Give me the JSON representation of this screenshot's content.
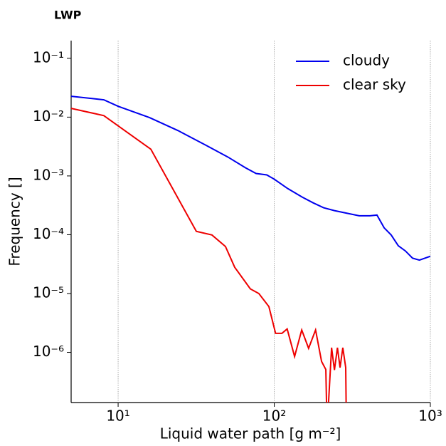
{
  "chart_data": {
    "type": "line",
    "title": "LWP",
    "xlabel": "Liquid water path [g m⁻²]",
    "ylabel": "Frequency []",
    "xscale": "log",
    "yscale": "log",
    "grid": "x",
    "legend": "upper right",
    "xlim": [
      5,
      1000
    ],
    "ylim": [
      1.4e-07,
      0.2
    ],
    "xticks": [
      {
        "value": 10,
        "label": "10¹"
      },
      {
        "value": 100,
        "label": "10²"
      },
      {
        "value": 1000,
        "label": "10³"
      }
    ],
    "yticks": [
      {
        "value": 1e-06,
        "label": "10⁻⁶"
      },
      {
        "value": 1e-05,
        "label": "10⁻⁵"
      },
      {
        "value": 0.0001,
        "label": "10⁻⁴"
      },
      {
        "value": 0.001,
        "label": "10⁻³"
      },
      {
        "value": 0.01,
        "label": "10⁻²"
      },
      {
        "value": 0.1,
        "label": "10⁻¹"
      }
    ],
    "series": [
      {
        "name": "cloudy",
        "color": "#0000ee",
        "x": [
          5,
          8.1,
          10,
          15.9,
          24.2,
          36.7,
          50.4,
          65.3,
          76.5,
          89.6,
          100,
          122,
          151,
          177,
          207,
          243,
          299,
          350,
          410,
          455,
          506,
          561,
          623,
          692,
          769,
          851,
          1000
        ],
        "values": [
          0.0226,
          0.0197,
          0.0153,
          0.0098,
          0.0059,
          0.0033,
          0.0021,
          0.00138,
          0.0011,
          0.00104,
          0.00088,
          0.00061,
          0.000437,
          0.00035,
          0.000288,
          0.000257,
          0.000229,
          0.00021,
          0.00021,
          0.000216,
          0.000131,
          9.9e-05,
          6.5e-05,
          5.3e-05,
          4e-05,
          3.7e-05,
          4.3e-05
        ]
      },
      {
        "name": "clear sky",
        "color": "#ee0000",
        "x": [
          5,
          8.1,
          16.2,
          31.7,
          39.9,
          48.7,
          55.8,
          70.3,
          79.7,
          92.4,
          102,
          112,
          121,
          135,
          150,
          166,
          184,
          201,
          214,
          218,
          233,
          243,
          254,
          264,
          275,
          287,
          290
        ],
        "values": [
          0.0141,
          0.0106,
          0.00285,
          0.000114,
          9.9e-05,
          6.3e-05,
          2.8e-05,
          1.2e-05,
          1e-05,
          6e-06,
          2.1e-06,
          2.1e-06,
          2.5e-06,
          8.5e-07,
          2.4e-06,
          1.17e-06,
          2.4e-06,
          7e-07,
          5.1e-07,
          5e-08,
          1.2e-06,
          5e-07,
          1.2e-06,
          5.5e-07,
          1.2e-06,
          5.5e-07,
          5e-08
        ]
      }
    ]
  }
}
